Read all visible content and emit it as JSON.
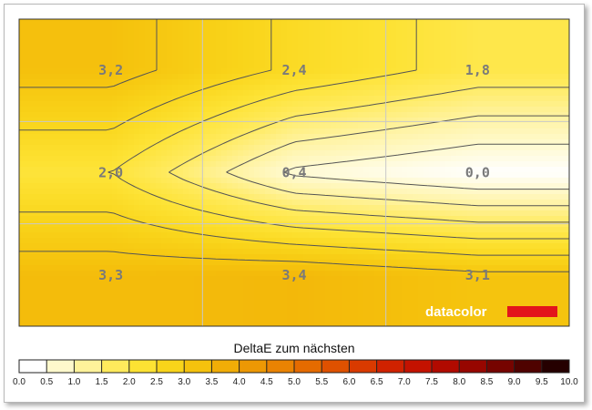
{
  "chart_data": {
    "type": "heatmap",
    "title": "DeltaE zum nächsten",
    "rows": 3,
    "cols": 3,
    "values": [
      [
        3.2,
        2.4,
        1.8
      ],
      [
        2.0,
        0.4,
        0.0
      ],
      [
        3.3,
        3.4,
        3.1
      ]
    ],
    "cell_labels": [
      [
        "3,2",
        "2,4",
        "1,8"
      ],
      [
        "2,0",
        "0,4",
        "0,0"
      ],
      [
        "3,3",
        "3,4",
        "3,1"
      ]
    ],
    "colorbar": {
      "min": 0.0,
      "max": 10.0,
      "ticks": [
        "0.0",
        "0.5",
        "1.0",
        "1.5",
        "2.0",
        "2.5",
        "3.0",
        "3.5",
        "4.0",
        "4.5",
        "5.0",
        "5.5",
        "6.0",
        "6.5",
        "7.0",
        "7.5",
        "8.0",
        "8.5",
        "9.0",
        "9.5",
        "10.0"
      ],
      "colors": [
        "#ffffff",
        "#fff9cc",
        "#fff29a",
        "#ffea5c",
        "#fde233",
        "#f9d41a",
        "#f5c20d",
        "#f1ad07",
        "#ed9804",
        "#ea8302",
        "#e56b00",
        "#df5100",
        "#d93a00",
        "#d02200",
        "#c41200",
        "#b10a00",
        "#970600",
        "#760400",
        "#4f0200",
        "#250000"
      ]
    },
    "grid": true,
    "contour_levels": [
      0.5,
      1.0,
      1.5,
      2.0,
      2.5,
      3.0
    ]
  },
  "logo": {
    "text": "datacolor",
    "bar_color": "#e3141b"
  }
}
